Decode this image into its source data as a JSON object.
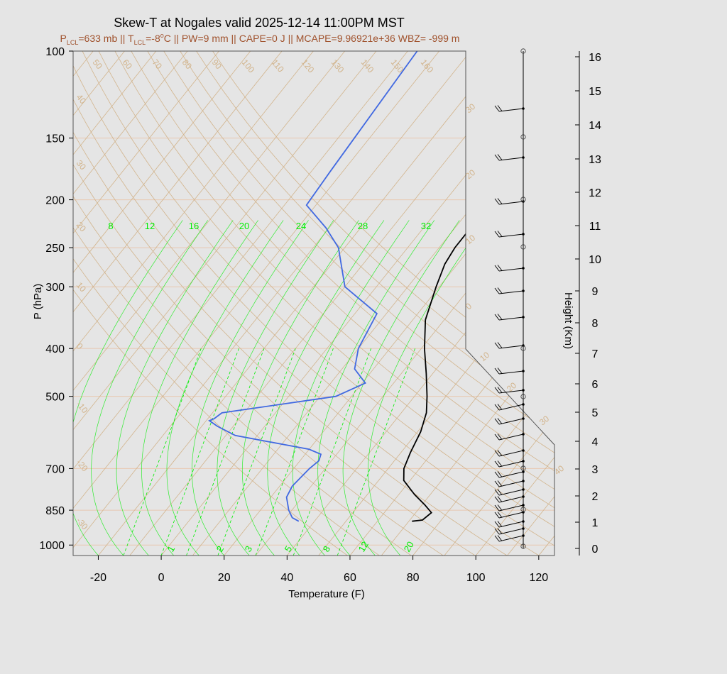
{
  "title": "Skew-T at Nogales valid 2025-12-14 11:00PM MST",
  "subtitle": {
    "plcl_main": "P",
    "plcl_sub": "LCL",
    "plcl_val": "=633 mb || T",
    "tlcl_sub": "LCL",
    "tlcl_val": "=-8",
    "deg": "o",
    "rest": "C || PW=9 mm || CAPE=0 J || MCAPE=9.96921e+36 WBZ= -999 m"
  },
  "colors": {
    "background": "#e5e5e5",
    "temperature": "#000000",
    "dewpoint": "#4169e1",
    "isotherm": "#d2b48c",
    "isobar": "#e8c8b0",
    "mixing_ratio": "#00ee00",
    "subtitle": "#a0522d"
  },
  "chart_data": {
    "type": "skew-t",
    "title": "Skew-T at Nogales valid 2025-12-14 11:00PM MST",
    "xlabel": "Temperature (F)",
    "ylabel": "P (hPa)",
    "y2label": "Height (Km)",
    "xlim": [
      -28,
      125
    ],
    "ylim": [
      1050,
      100
    ],
    "x_ticks": [
      "-20",
      "0",
      "20",
      "40",
      "60",
      "80",
      "100",
      "120"
    ],
    "p_ticks": [
      "100",
      "150",
      "200",
      "250",
      "300",
      "400",
      "500",
      "700",
      "850",
      "1000"
    ],
    "height_ticks": [
      "0",
      "1",
      "2",
      "3",
      "4",
      "5",
      "6",
      "7",
      "8",
      "9",
      "10",
      "11",
      "12",
      "13",
      "14",
      "15",
      "16"
    ],
    "isotherm_labels": [
      "50",
      "60",
      "70",
      "80",
      "90",
      "100",
      "110",
      "120",
      "130",
      "140",
      "150",
      "160",
      "40",
      "30",
      "20",
      "10",
      "0",
      "-10",
      "-20",
      "-30",
      "30",
      "20",
      "10",
      "0",
      "10",
      "20",
      "30",
      "40"
    ],
    "mixing_ratio_upper": [
      "8",
      "12",
      "16",
      "20",
      "24",
      "28",
      "32"
    ],
    "mixing_ratio_lower": [
      "1",
      "2",
      "3",
      "5",
      "8",
      "12",
      "20"
    ],
    "temperature_F": [
      [
        895,
        71
      ],
      [
        890,
        74
      ],
      [
        860,
        75
      ],
      [
        830,
        71
      ],
      [
        790,
        65
      ],
      [
        740,
        58
      ],
      [
        700,
        55
      ],
      [
        650,
        53
      ],
      [
        590,
        51
      ],
      [
        540,
        48
      ],
      [
        500,
        44
      ],
      [
        450,
        38
      ],
      [
        400,
        31
      ],
      [
        350,
        24
      ],
      [
        300,
        19
      ],
      [
        270,
        16
      ],
      [
        250,
        15
      ],
      [
        220,
        15
      ],
      [
        200,
        16
      ],
      [
        170,
        17
      ],
      [
        150,
        19
      ],
      [
        130,
        23
      ],
      [
        115,
        26
      ],
      [
        100,
        27
      ]
    ],
    "dewpoint_F": [
      [
        895,
        35
      ],
      [
        880,
        32
      ],
      [
        850,
        29
      ],
      [
        800,
        25
      ],
      [
        760,
        24
      ],
      [
        700,
        25
      ],
      [
        675,
        26
      ],
      [
        655,
        25
      ],
      [
        640,
        20
      ],
      [
        600,
        -7
      ],
      [
        575,
        -15
      ],
      [
        560,
        -19
      ],
      [
        555,
        -18
      ],
      [
        540,
        -17
      ],
      [
        500,
        15
      ],
      [
        470,
        21
      ],
      [
        440,
        14
      ],
      [
        400,
        10
      ],
      [
        340,
        7
      ],
      [
        300,
        -10
      ],
      [
        250,
        -22
      ],
      [
        228,
        -31
      ],
      [
        205,
        -43
      ],
      [
        175,
        -44
      ],
      [
        100,
        -47
      ]
    ],
    "wind_barbs": "Wind barbs at pressure levels from surface to 100 hPa (westerly to west-southwesterly)"
  }
}
